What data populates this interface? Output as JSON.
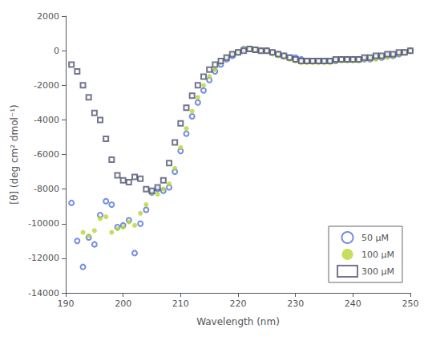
{
  "chart_data": {
    "type": "scatter",
    "xlabel": "Wavelength (nm)",
    "ylabel": "[θ] (deg cm² dmol⁻¹)",
    "xlim": [
      190,
      250
    ],
    "ylim": [
      -14000,
      2000
    ],
    "xticks": [
      190,
      200,
      210,
      220,
      230,
      240,
      250
    ],
    "yticks": [
      -14000,
      -12000,
      -10000,
      -8000,
      -6000,
      -4000,
      -2000,
      0,
      2000
    ],
    "grid": false,
    "legend": "lower right",
    "series": [
      {
        "name": "50 μM",
        "marker": "open_circle",
        "x": [
          191,
          192,
          193,
          194,
          195,
          196,
          197,
          198,
          199,
          200,
          201,
          202,
          203,
          204,
          205,
          206,
          207,
          208,
          209,
          210,
          211,
          212,
          213,
          214,
          215,
          216,
          217,
          218,
          219,
          220,
          221,
          222,
          223,
          224,
          225,
          226,
          227,
          228,
          229,
          230,
          231,
          232,
          233,
          234,
          235,
          236,
          237,
          238,
          239,
          240,
          241,
          242,
          243,
          244,
          245,
          246,
          247,
          248,
          249,
          250
        ],
        "values": [
          -8800,
          -11000,
          -12500,
          -10800,
          -11200,
          -9500,
          -8700,
          -8900,
          -10200,
          -10100,
          -9800,
          -11700,
          -10000,
          -9200,
          -8200,
          -8000,
          -8100,
          -7900,
          -7000,
          -5800,
          -4800,
          -3800,
          -3000,
          -2300,
          -1700,
          -1200,
          -800,
          -500,
          -300,
          -100,
          100,
          100,
          50,
          0,
          0,
          -100,
          -200,
          -300,
          -400,
          -400,
          -500,
          -600,
          -600,
          -600,
          -600,
          -600,
          -600,
          -500,
          -500,
          -500,
          -500,
          -500,
          -500,
          -400,
          -400,
          -300,
          -300,
          -200,
          -100,
          0
        ]
      },
      {
        "name": "100 μM",
        "marker": "filled_circle",
        "x": [
          193,
          194,
          195,
          196,
          197,
          198,
          199,
          200,
          201,
          202,
          203,
          204,
          205,
          206,
          207,
          208,
          209,
          210,
          211,
          212,
          213,
          214,
          215,
          216,
          217,
          218,
          219,
          220,
          221,
          222,
          223,
          224,
          225,
          226,
          227,
          228,
          229,
          230,
          231,
          232,
          233,
          234,
          235,
          236,
          237,
          238,
          239,
          240,
          241,
          242,
          243,
          244,
          245,
          246,
          247,
          248,
          249,
          250
        ],
        "values": [
          -10500,
          -10700,
          -10400,
          -9700,
          -9600,
          -10500,
          -10300,
          -10200,
          -9900,
          -10100,
          -9400,
          -8900,
          -8200,
          -8300,
          -8000,
          -7700,
          -6800,
          -5600,
          -4500,
          -3500,
          -2700,
          -2000,
          -1500,
          -1100,
          -700,
          -400,
          -200,
          -100,
          100,
          100,
          50,
          0,
          0,
          -200,
          -300,
          -400,
          -500,
          -600,
          -700,
          -700,
          -700,
          -700,
          -700,
          -700,
          -600,
          -600,
          -600,
          -600,
          -600,
          -500,
          -500,
          -500,
          -400,
          -400,
          -300,
          -200,
          -100,
          0
        ]
      },
      {
        "name": "300 μM",
        "marker": "open_square",
        "x": [
          191,
          192,
          193,
          194,
          195,
          196,
          197,
          198,
          199,
          200,
          201,
          202,
          203,
          204,
          205,
          206,
          207,
          208,
          209,
          210,
          211,
          212,
          213,
          214,
          215,
          216,
          217,
          218,
          219,
          220,
          221,
          222,
          223,
          224,
          225,
          226,
          227,
          228,
          229,
          230,
          231,
          232,
          233,
          234,
          235,
          236,
          237,
          238,
          239,
          240,
          241,
          242,
          243,
          244,
          245,
          246,
          247,
          248,
          249,
          250
        ],
        "values": [
          -800,
          -1200,
          -2000,
          -2700,
          -3600,
          -4000,
          -5100,
          -6300,
          -7200,
          -7500,
          -7600,
          -7300,
          -7400,
          -8000,
          -8100,
          -7900,
          -7500,
          -6500,
          -5300,
          -4200,
          -3300,
          -2600,
          -2000,
          -1500,
          -1100,
          -800,
          -600,
          -400,
          -200,
          -100,
          0,
          100,
          50,
          0,
          0,
          -100,
          -200,
          -300,
          -400,
          -500,
          -600,
          -600,
          -600,
          -600,
          -600,
          -600,
          -500,
          -500,
          -500,
          -500,
          -500,
          -400,
          -400,
          -300,
          -300,
          -200,
          -200,
          -100,
          -100,
          0
        ]
      }
    ]
  }
}
